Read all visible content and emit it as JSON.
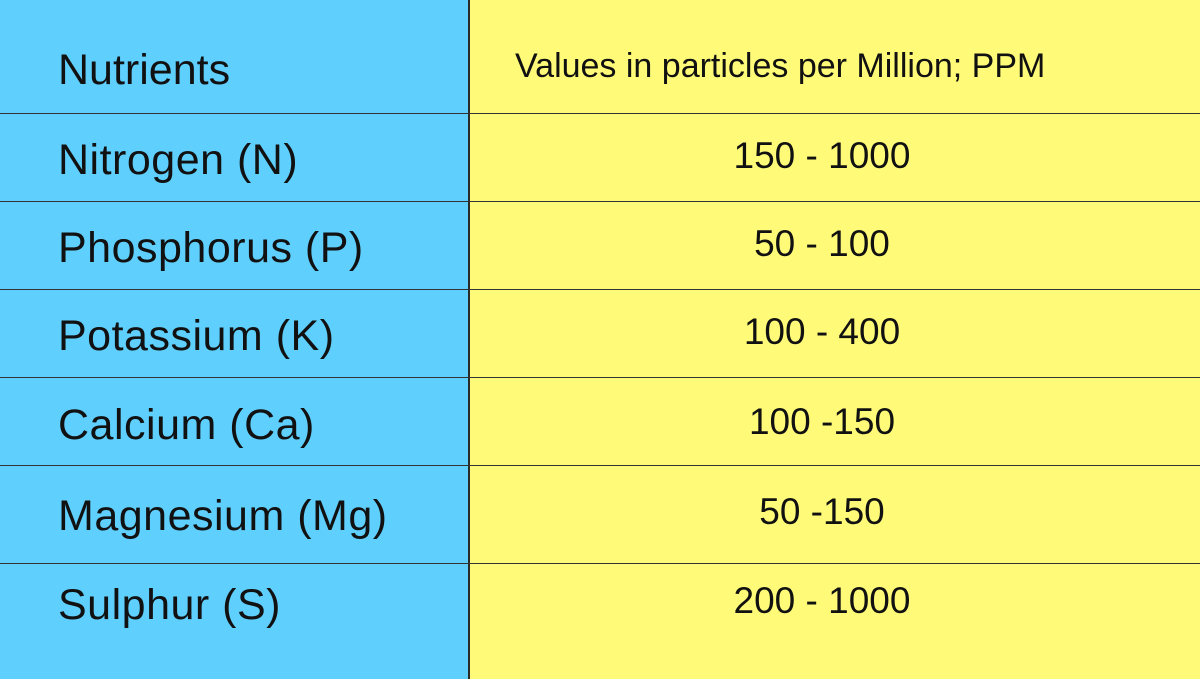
{
  "table": {
    "header": {
      "nutrients_label": "Nutrients",
      "values_label": "Values in particles per Million; PPM"
    },
    "rows": [
      {
        "nutrient": "Nitrogen (N)",
        "value": "150 - 1000"
      },
      {
        "nutrient": "Phosphorus (P)",
        "value": "50 - 100"
      },
      {
        "nutrient": "Potassium (K)",
        "value": "100 - 400"
      },
      {
        "nutrient": "Calcium (Ca)",
        "value": "100 -150"
      },
      {
        "nutrient": "Magnesium (Mg)",
        "value": "50 -150"
      },
      {
        "nutrient": "Sulphur (S)",
        "value": "200 - 1000"
      }
    ],
    "colors": {
      "left_column": "#5fcffd",
      "right_column": "#fffa78",
      "text": "#111111",
      "grid_lines": "#333333"
    }
  }
}
